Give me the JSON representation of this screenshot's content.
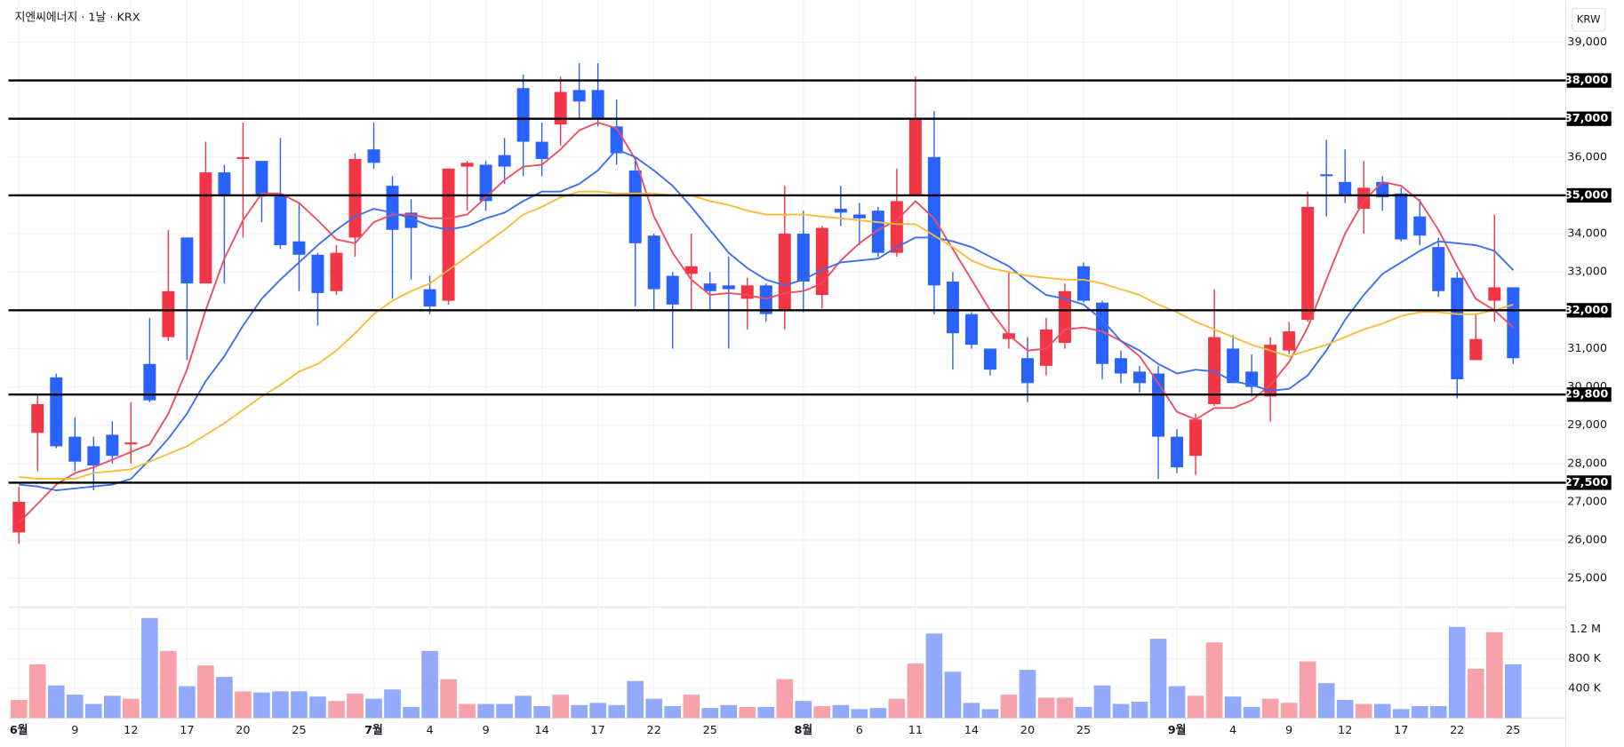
{
  "chart_data": {
    "type": "candlestick",
    "title": "지엔씨에너지 · 1날 · KRX",
    "currency": "KRW",
    "up_color": "#f23645",
    "down_color": "#2962ff",
    "volume_up_color": "#f7a1aa",
    "volume_down_color": "#93aafa",
    "grid": true,
    "categories": [
      "6월",
      null,
      null,
      "9",
      null,
      null,
      "12",
      null,
      null,
      "17",
      null,
      null,
      "20",
      null,
      null,
      "25",
      null,
      null,
      null,
      "7월",
      null,
      null,
      "4",
      null,
      null,
      "9",
      null,
      null,
      "14",
      null,
      null,
      "17",
      null,
      null,
      "22",
      null,
      null,
      "25",
      null,
      null,
      null,
      null,
      "8월",
      null,
      null,
      "6",
      null,
      null,
      "11",
      null,
      null,
      "14",
      null,
      null,
      "20",
      null,
      null,
      "25",
      null,
      null,
      null,
      null,
      "9월",
      null,
      null,
      "4",
      null,
      null,
      "9",
      null,
      null,
      "12",
      null,
      null,
      "17",
      null,
      null,
      "22",
      null,
      null,
      "25"
    ],
    "open": [
      26200,
      28800,
      30250,
      28700,
      28450,
      28750,
      28500,
      30600,
      31300,
      33900,
      32700,
      35600,
      35950,
      35900,
      35000,
      33800,
      33450,
      32500,
      33900,
      36200,
      35250,
      34550,
      32550,
      32250,
      35750,
      35800,
      36050,
      37800,
      36400,
      36850,
      37750,
      37750,
      36800,
      35650,
      33950,
      32900,
      32950,
      32700,
      32650,
      32300,
      32650,
      32000,
      34000,
      32400,
      34650,
      34500,
      34600,
      33500,
      35000,
      36000,
      32750,
      31900,
      31000,
      31250,
      30750,
      30550,
      31150,
      33150,
      32200,
      30750,
      30400,
      30350,
      28700,
      28200,
      29550,
      31000,
      30400,
      29750,
      30950,
      31750,
      35550,
      35350,
      34650,
      35350,
      35050,
      34450,
      33650,
      32850,
      30700,
      32250,
      32600
    ],
    "high": [
      27400,
      29800,
      30350,
      29200,
      28700,
      29100,
      29600,
      31800,
      34100,
      33900,
      36400,
      35800,
      36900,
      35900,
      36500,
      34800,
      33500,
      33700,
      36100,
      36900,
      35500,
      34900,
      32900,
      35700,
      35900,
      35900,
      36500,
      38150,
      36900,
      38100,
      38450,
      38450,
      37500,
      35900,
      34000,
      33000,
      34000,
      33000,
      33400,
      32850,
      32700,
      35250,
      34600,
      34200,
      35250,
      34800,
      34700,
      35700,
      38100,
      37200,
      33000,
      31950,
      31000,
      33000,
      31300,
      31800,
      32700,
      33250,
      32250,
      30950,
      30550,
      30550,
      28900,
      29300,
      32550,
      31350,
      30850,
      31300,
      31700,
      35100,
      36450,
      36200,
      35900,
      35500,
      35200,
      34900,
      33900,
      33000,
      31900,
      34500,
      32600
    ],
    "low": [
      25900,
      27800,
      28400,
      27800,
      27300,
      28000,
      28000,
      29600,
      31200,
      30700,
      32700,
      32700,
      33900,
      34300,
      33600,
      32500,
      31600,
      32400,
      33400,
      35700,
      32300,
      32800,
      31900,
      32150,
      34600,
      34600,
      35300,
      35500,
      35500,
      36300,
      37000,
      36800,
      35800,
      32100,
      32000,
      31000,
      32000,
      32000,
      31000,
      31500,
      31700,
      31500,
      31950,
      32050,
      34200,
      33700,
      33400,
      33400,
      35000,
      31900,
      30450,
      31000,
      30300,
      31000,
      29600,
      30300,
      31000,
      32200,
      30200,
      30100,
      29850,
      27600,
      27750,
      27700,
      29500,
      30100,
      29750,
      29100,
      30850,
      31700,
      34450,
      34800,
      34000,
      34600,
      33800,
      33700,
      32350,
      29700,
      30700,
      31700,
      30600
    ],
    "close": [
      27000,
      29550,
      28450,
      28050,
      27950,
      28200,
      28550,
      29650,
      32500,
      32700,
      35600,
      35000,
      36000,
      35000,
      33700,
      33450,
      32450,
      33500,
      35950,
      35850,
      34100,
      34150,
      32100,
      35700,
      35850,
      34850,
      35750,
      36400,
      35950,
      37700,
      37450,
      37000,
      36100,
      33750,
      32550,
      32150,
      33150,
      32500,
      32550,
      32650,
      31900,
      34000,
      32750,
      34150,
      34550,
      34400,
      33500,
      34850,
      37000,
      32650,
      31400,
      31100,
      30450,
      31400,
      30100,
      31500,
      32500,
      32250,
      30600,
      30350,
      30100,
      28700,
      27900,
      29150,
      31300,
      30100,
      30000,
      31100,
      31450,
      34700,
      35500,
      35000,
      35200,
      34950,
      33850,
      33950,
      32500,
      30200,
      31250,
      32600,
      30750
    ],
    "ma": [
      {
        "color": "#ef4d5f",
        "values": [
          26450,
          26950,
          27450,
          27750,
          27900,
          28100,
          28300,
          28500,
          29300,
          30450,
          32000,
          33350,
          34350,
          35050,
          35050,
          34800,
          34350,
          33850,
          33750,
          34300,
          34500,
          34500,
          34400,
          34400,
          34500,
          34950,
          35400,
          35750,
          35800,
          36200,
          36700,
          36900,
          36750,
          35950,
          34450,
          33500,
          32800,
          32400,
          32450,
          32400,
          32300,
          32450,
          32500,
          32700,
          33300,
          33750,
          34100,
          34350,
          34850,
          34400,
          33600,
          32800,
          32000,
          31350,
          30950,
          31000,
          31500,
          31550,
          31450,
          31200,
          30800,
          30100,
          29350,
          29150,
          29450,
          29450,
          29650,
          30050,
          30650,
          31550,
          32800,
          34000,
          34850,
          35350,
          35250,
          34850,
          34100,
          33150,
          32300,
          32000,
          31550
        ]
      },
      {
        "color": "#3b6ef0",
        "values": [
          27450,
          27400,
          27300,
          27350,
          27400,
          27450,
          27600,
          28100,
          28650,
          29300,
          30150,
          30800,
          31600,
          32300,
          32800,
          33250,
          33700,
          34100,
          34450,
          34650,
          34550,
          34400,
          34200,
          34100,
          34200,
          34400,
          34550,
          34850,
          35100,
          35100,
          35300,
          35650,
          36200,
          36000,
          35650,
          35250,
          34700,
          34100,
          33500,
          33100,
          32800,
          32650,
          32800,
          33050,
          33250,
          33300,
          33350,
          33650,
          33900,
          33900,
          33800,
          33650,
          33400,
          33150,
          32750,
          32400,
          32300,
          32150,
          31750,
          31200,
          30950,
          30600,
          30350,
          30450,
          30400,
          30150,
          30050,
          29900,
          29950,
          30300,
          30950,
          31750,
          32400,
          32950,
          33250,
          33550,
          33800,
          33750,
          33700,
          33550,
          33050
        ]
      },
      {
        "color": "#f5bd3a",
        "values": [
          27650,
          27600,
          27600,
          27600,
          27750,
          27800,
          27850,
          28050,
          28250,
          28450,
          28750,
          29050,
          29400,
          29750,
          30050,
          30400,
          30600,
          30950,
          31400,
          31900,
          32250,
          32500,
          32700,
          33050,
          33400,
          33750,
          34100,
          34500,
          34700,
          34950,
          35100,
          35100,
          35050,
          35050,
          35050,
          35000,
          35000,
          34850,
          34750,
          34600,
          34500,
          34500,
          34500,
          34450,
          34400,
          34350,
          34300,
          34250,
          34250,
          33950,
          33650,
          33300,
          33100,
          33000,
          32900,
          32850,
          32800,
          32800,
          32700,
          32550,
          32400,
          32150,
          31950,
          31700,
          31500,
          31300,
          31100,
          30950,
          30800,
          30950,
          31100,
          31300,
          31500,
          31650,
          31850,
          31950,
          31950,
          31900,
          31900,
          32000,
          32150
        ]
      }
    ],
    "ylim": [
      24300,
      40100
    ],
    "yticks": [
      {
        "value": 25000,
        "label": "25,000"
      },
      {
        "value": 26000,
        "label": "26,000"
      },
      {
        "value": 27000,
        "label": "27,000"
      },
      {
        "value": 28000,
        "label": "28,000"
      },
      {
        "value": 29000,
        "label": "29,000"
      },
      {
        "value": 30000,
        "label": "30,000"
      },
      {
        "value": 31000,
        "label": "31,000"
      },
      {
        "value": 33000,
        "label": "33,000"
      },
      {
        "value": 34000,
        "label": "34,000"
      },
      {
        "value": 36000,
        "label": "36,000"
      },
      {
        "value": 39000,
        "label": "39,000"
      }
    ],
    "levels": [
      {
        "value": 38000,
        "label": "38,000"
      },
      {
        "value": 37000,
        "label": "37,000"
      },
      {
        "value": 35000,
        "label": "35,000"
      },
      {
        "value": 32000,
        "label": "32,000"
      },
      {
        "value": 29800,
        "label": "29,800"
      },
      {
        "value": 27500,
        "label": "27,500"
      }
    ],
    "volume": {
      "values": [
        245000,
        725000,
        440000,
        315000,
        190000,
        300000,
        260000,
        1350000,
        905000,
        430000,
        710000,
        555000,
        360000,
        345000,
        360000,
        360000,
        290000,
        230000,
        330000,
        260000,
        385000,
        150000,
        905000,
        525000,
        190000,
        190000,
        190000,
        300000,
        160000,
        315000,
        175000,
        205000,
        175000,
        500000,
        260000,
        160000,
        315000,
        135000,
        175000,
        150000,
        150000,
        525000,
        230000,
        160000,
        175000,
        120000,
        135000,
        260000,
        735000,
        1140000,
        625000,
        205000,
        120000,
        315000,
        650000,
        275000,
        275000,
        150000,
        440000,
        190000,
        220000,
        1070000,
        430000,
        300000,
        1020000,
        290000,
        150000,
        260000,
        205000,
        765000,
        470000,
        245000,
        190000,
        190000,
        120000,
        160000,
        160000,
        1230000,
        665000,
        1160000,
        725000
      ],
      "ylim": [
        0,
        1480000
      ],
      "yticks": [
        {
          "value": 400000,
          "label": "400 K"
        },
        {
          "value": 800000,
          "label": "800 K"
        },
        {
          "value": 1200000,
          "label": "1.2 M"
        }
      ]
    }
  }
}
